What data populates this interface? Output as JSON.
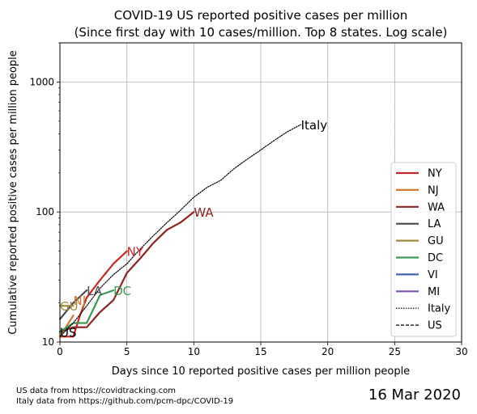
{
  "chart_data": {
    "type": "line",
    "title": "COVID-19 US reported positive cases per million",
    "subtitle": "(Since first day with 10 cases/million. Top 8 states. Log scale)",
    "xlabel": "Days since 10 reported positive cases per million people",
    "ylabel": "Cumulative reported positive cases per million people",
    "xlim": [
      0,
      30
    ],
    "ylim": [
      10,
      2000
    ],
    "yscale": "log",
    "grid": true,
    "x_ticks": [
      "0",
      "5",
      "10",
      "15",
      "20",
      "25",
      "30"
    ],
    "y_ticks": [
      "10",
      "100",
      "1000"
    ],
    "legend_position": "right",
    "series": [
      {
        "name": "NY",
        "color": "#c62828",
        "style": "solid",
        "label": "NY",
        "x": [
          0,
          1,
          1.5,
          2,
          3,
          4,
          5
        ],
        "y": [
          11,
          11,
          16,
          22,
          30,
          40,
          50
        ]
      },
      {
        "name": "NJ",
        "color": "#d17a30",
        "style": "solid",
        "label": "NJ",
        "x": [
          0,
          1
        ],
        "y": [
          11,
          16
        ]
      },
      {
        "name": "WA",
        "color": "#8b2323",
        "style": "solid",
        "label": "WA",
        "x": [
          0,
          1,
          2,
          3,
          4,
          5,
          6,
          7,
          8,
          9,
          10
        ],
        "y": [
          12,
          13,
          13,
          17,
          21,
          34,
          44,
          58,
          73,
          83,
          100
        ]
      },
      {
        "name": "LA",
        "color": "#4a4a4a",
        "style": "solid",
        "label": "LA",
        "x": [
          0,
          1,
          2
        ],
        "y": [
          15,
          20,
          25
        ]
      },
      {
        "name": "GU",
        "color": "#a08a3c",
        "style": "solid",
        "label": "GU",
        "x": [
          0,
          1
        ],
        "y": [
          19,
          19
        ]
      },
      {
        "name": "DC",
        "color": "#3a9a55",
        "style": "solid",
        "label": "DC",
        "x": [
          0,
          1,
          2,
          3,
          4
        ],
        "y": [
          12,
          14,
          14,
          23,
          25
        ]
      },
      {
        "name": "VI",
        "color": "#3f64b5",
        "style": "solid",
        "label": "",
        "x": [],
        "y": []
      },
      {
        "name": "MI",
        "color": "#7b52a8",
        "style": "solid",
        "label": "",
        "x": [],
        "y": []
      },
      {
        "name": "Italy",
        "color": "#000000",
        "style": "dotted",
        "label": "Italy",
        "x": [
          0,
          1,
          2,
          3,
          4,
          5,
          6,
          7,
          8,
          9,
          10,
          11,
          12,
          13,
          14,
          15,
          16,
          17,
          18
        ],
        "y": [
          11,
          14,
          19,
          26,
          33,
          40,
          52,
          66,
          83,
          103,
          130,
          155,
          175,
          215,
          255,
          300,
          355,
          415,
          470
        ]
      },
      {
        "name": "US",
        "color": "#000000",
        "style": "dashed",
        "label": "US",
        "x": [],
        "y": []
      }
    ],
    "annotations": [
      {
        "text": "Italy",
        "color": "#000000",
        "x": 18,
        "y": 470
      },
      {
        "text": "WA",
        "color": "#8b2323",
        "x": 10,
        "y": 100
      },
      {
        "text": "NY",
        "color": "#c62828",
        "x": 5,
        "y": 50
      },
      {
        "text": "DC",
        "color": "#3a9a55",
        "x": 4,
        "y": 25
      },
      {
        "text": "LA",
        "color": "#4a4a4a",
        "x": 2,
        "y": 25
      },
      {
        "text": "NJ",
        "color": "#d17a30",
        "x": 1,
        "y": 21
      },
      {
        "text": "GU",
        "color": "#a08a3c",
        "x": 0,
        "y": 19
      },
      {
        "text": "US",
        "color": "#000000",
        "x": 0,
        "y": 12
      }
    ]
  },
  "footer": {
    "source_us": "US data from https://covidtracking.com",
    "source_italy": "Italy data from https://github.com/pcm-dpc/COVID-19",
    "date": "16 Mar 2020"
  }
}
